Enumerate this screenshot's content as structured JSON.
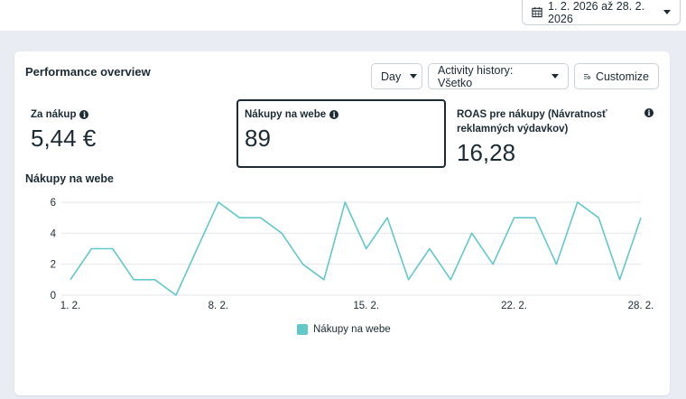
{
  "date_range": {
    "label": "1. 2. 2026 až 28. 2. 2026",
    "icon": "calendar-icon"
  },
  "card": {
    "title": "Performance overview"
  },
  "controls": {
    "granularity": "Day",
    "activity_history": "Activity history: Všetko",
    "customize": "Customize"
  },
  "metrics": [
    {
      "label": "Za nákup",
      "value": "5,44 €"
    },
    {
      "label": "Nákupy na webe",
      "value": "89",
      "selected": true
    },
    {
      "label": "ROAS pre nákupy (Návratnosť reklamných výdavkov)",
      "value": "16,28"
    }
  ],
  "colors": {
    "series": "#63c8c9",
    "grid": "#e4e6eb",
    "text": "#1c2b33"
  },
  "chart_data": {
    "type": "line",
    "title": "Nákupy na webe",
    "x": [
      "1. 2.",
      "2. 2.",
      "3. 2.",
      "4. 2.",
      "5. 2.",
      "6. 2.",
      "7. 2.",
      "8. 2.",
      "9. 2.",
      "10. 2.",
      "11. 2.",
      "12. 2.",
      "13. 2.",
      "14. 2.",
      "15. 2.",
      "16. 2.",
      "17. 2.",
      "18. 2.",
      "19. 2.",
      "20. 2.",
      "21. 2.",
      "22. 2.",
      "23. 2.",
      "24. 2.",
      "25. 2.",
      "26. 2.",
      "27. 2.",
      "28. 2."
    ],
    "x_tick_labels": [
      "1. 2.",
      "8. 2.",
      "15. 2.",
      "22. 2.",
      "28. 2."
    ],
    "y_ticks": [
      0,
      2,
      4,
      6
    ],
    "ylim": [
      0,
      6
    ],
    "grid": true,
    "legend_position": "bottom",
    "series": [
      {
        "name": "Nákupy na webe",
        "values": [
          1,
          3,
          3,
          1,
          1,
          0,
          3,
          6,
          5,
          5,
          4,
          2,
          1,
          6,
          3,
          5,
          1,
          3,
          1,
          4,
          2,
          5,
          5,
          2,
          6,
          5,
          1,
          5
        ]
      }
    ]
  }
}
